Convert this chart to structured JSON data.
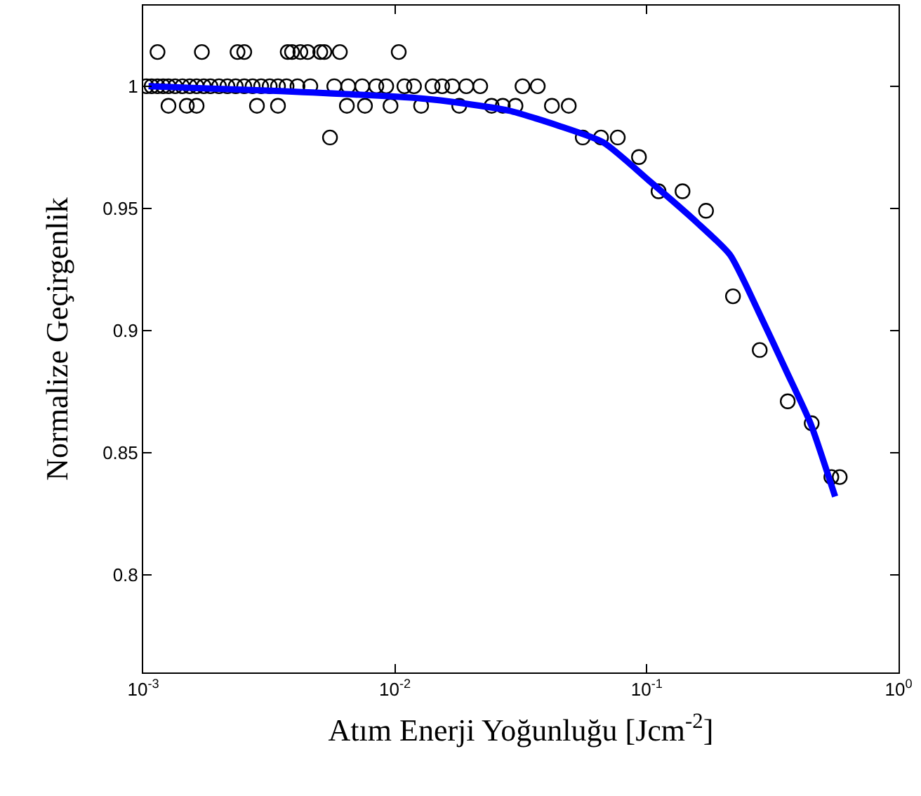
{
  "chart_data": {
    "type": "scatter",
    "xlabel": "Atım Enerji Yoğunluğu [Jcm$^{-2}$]",
    "ylabel": "Normalize Geçirgenlik",
    "log": "x",
    "grid": false,
    "legend": false,
    "xlim": [
      0.001,
      1
    ],
    "xticks": [
      {
        "value": 0.001,
        "label": "10$^{-3}$"
      },
      {
        "value": 0.01,
        "label": "10$^{-2}$"
      },
      {
        "value": 0.1,
        "label": "10$^{-1}$"
      },
      {
        "value": 1,
        "label": "10$^{0}$"
      }
    ],
    "ylim": [
      0.76,
      1.033
    ],
    "yticks": [
      0.8,
      0.85,
      0.9,
      0.95,
      1
    ],
    "series": [
      {
        "color": "#000000",
        "marker": "circle",
        "x": [
          0.00114,
          0.00171,
          0.00237,
          0.00252,
          0.00375,
          0.0039,
          0.00421,
          0.0045,
          0.00505,
          0.00524,
          0.00604,
          0.01035,
          0.00103,
          0.00108,
          0.00114,
          0.0012,
          0.00126,
          0.00134,
          0.00143,
          0.00153,
          0.00163,
          0.00174,
          0.00185,
          0.002,
          0.00216,
          0.00233,
          0.00252,
          0.00272,
          0.00294,
          0.00318,
          0.00343,
          0.00371,
          0.0041,
          0.00461,
          0.00574,
          0.00652,
          0.00741,
          0.00843,
          0.00923,
          0.0109,
          0.0119,
          0.0141,
          0.0154,
          0.0169,
          0.0192,
          0.0218,
          0.0321,
          0.0369,
          0.00126,
          0.00149,
          0.00163,
          0.00283,
          0.00343,
          0.00644,
          0.0076,
          0.0096,
          0.0127,
          0.018,
          0.0242,
          0.0268,
          0.0301,
          0.042,
          0.049,
          0.00552,
          0.0557,
          0.0658,
          0.0767,
          0.0931,
          0.1114,
          0.1387,
          0.172,
          0.22,
          0.281,
          0.363,
          0.452,
          0.541,
          0.584
        ],
        "values": [
          1.014,
          1.014,
          1.014,
          1.014,
          1.014,
          1.014,
          1.014,
          1.014,
          1.014,
          1.014,
          1.014,
          1.014,
          1,
          1,
          1,
          1,
          1,
          1,
          1,
          1,
          1,
          1,
          1,
          1,
          1,
          1,
          1,
          1,
          1,
          1,
          1,
          1,
          1,
          1,
          1,
          1,
          1,
          1,
          1,
          1,
          1,
          1,
          1,
          1,
          1,
          1,
          1,
          1,
          0.992,
          0.992,
          0.992,
          0.992,
          0.992,
          0.992,
          0.992,
          0.992,
          0.992,
          0.992,
          0.992,
          0.992,
          0.992,
          0.992,
          0.992,
          0.979,
          0.979,
          0.979,
          0.979,
          0.971,
          0.957,
          0.957,
          0.949,
          0.914,
          0.892,
          0.871,
          0.862,
          0.84,
          0.84
        ]
      },
      {
        "type": "line",
        "color": "#0000ff",
        "marker": "none",
        "line_style": "solid",
        "x": [
          0.00105,
          0.00352,
          0.0127,
          0.0187,
          0.0284,
          0.0441,
          0.0672,
          0.103,
          0.159,
          0.214,
          0.277,
          0.36,
          0.447,
          0.56
        ],
        "values": [
          1.0,
          0.998,
          0.995,
          0.993,
          0.99,
          0.984,
          0.977,
          0.961,
          0.944,
          0.931,
          0.908,
          0.883,
          0.862,
          0.832
        ]
      }
    ]
  }
}
